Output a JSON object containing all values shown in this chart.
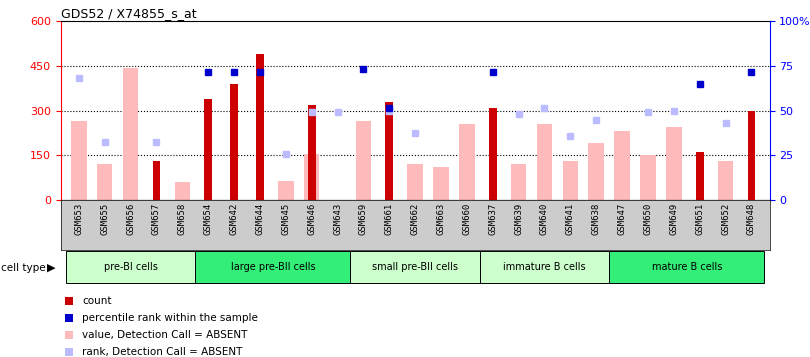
{
  "title": "GDS52 / X74855_s_at",
  "samples": [
    "GSM653",
    "GSM655",
    "GSM656",
    "GSM657",
    "GSM658",
    "GSM654",
    "GSM642",
    "GSM644",
    "GSM645",
    "GSM646",
    "GSM643",
    "GSM659",
    "GSM661",
    "GSM662",
    "GSM663",
    "GSM660",
    "GSM637",
    "GSM639",
    "GSM640",
    "GSM641",
    "GSM638",
    "GSM647",
    "GSM650",
    "GSM649",
    "GSM651",
    "GSM652",
    "GSM648"
  ],
  "count": [
    null,
    null,
    null,
    130,
    null,
    340,
    390,
    490,
    null,
    320,
    null,
    null,
    330,
    null,
    null,
    null,
    310,
    null,
    null,
    null,
    null,
    null,
    null,
    null,
    160,
    null,
    300
  ],
  "percentile_rank_left": [
    null,
    null,
    null,
    null,
    null,
    430,
    430,
    430,
    null,
    null,
    null,
    440,
    310,
    null,
    null,
    null,
    430,
    null,
    null,
    null,
    null,
    null,
    null,
    null,
    390,
    null,
    430
  ],
  "value_absent": [
    265,
    120,
    445,
    null,
    60,
    null,
    null,
    null,
    65,
    155,
    null,
    265,
    null,
    120,
    110,
    255,
    null,
    120,
    255,
    130,
    190,
    230,
    150,
    245,
    null,
    130,
    null
  ],
  "rank_absent_left": [
    410,
    195,
    null,
    195,
    null,
    null,
    null,
    null,
    155,
    295,
    295,
    null,
    300,
    225,
    null,
    null,
    null,
    290,
    310,
    215,
    270,
    null,
    295,
    300,
    null,
    260,
    null
  ],
  "cell_groups": [
    {
      "label": "pre-BI cells",
      "start": 0,
      "end": 5,
      "color": "#ccffcc"
    },
    {
      "label": "large pre-BII cells",
      "start": 5,
      "end": 11,
      "color": "#33ee77"
    },
    {
      "label": "small pre-BII cells",
      "start": 11,
      "end": 16,
      "color": "#ccffcc"
    },
    {
      "label": "immature B cells",
      "start": 16,
      "end": 21,
      "color": "#ccffcc"
    },
    {
      "label": "mature B cells",
      "start": 21,
      "end": 27,
      "color": "#33ee77"
    }
  ],
  "ylim_left": [
    0,
    600
  ],
  "ylim_right": [
    0,
    100
  ],
  "yticks_left": [
    0,
    150,
    300,
    450,
    600
  ],
  "yticks_right": [
    0,
    25,
    50,
    75,
    100
  ],
  "count_color": "#cc0000",
  "percentile_color": "#0000cc",
  "value_absent_color": "#ffbbbb",
  "rank_absent_color": "#bbbbff",
  "bg_color": "#ffffff"
}
